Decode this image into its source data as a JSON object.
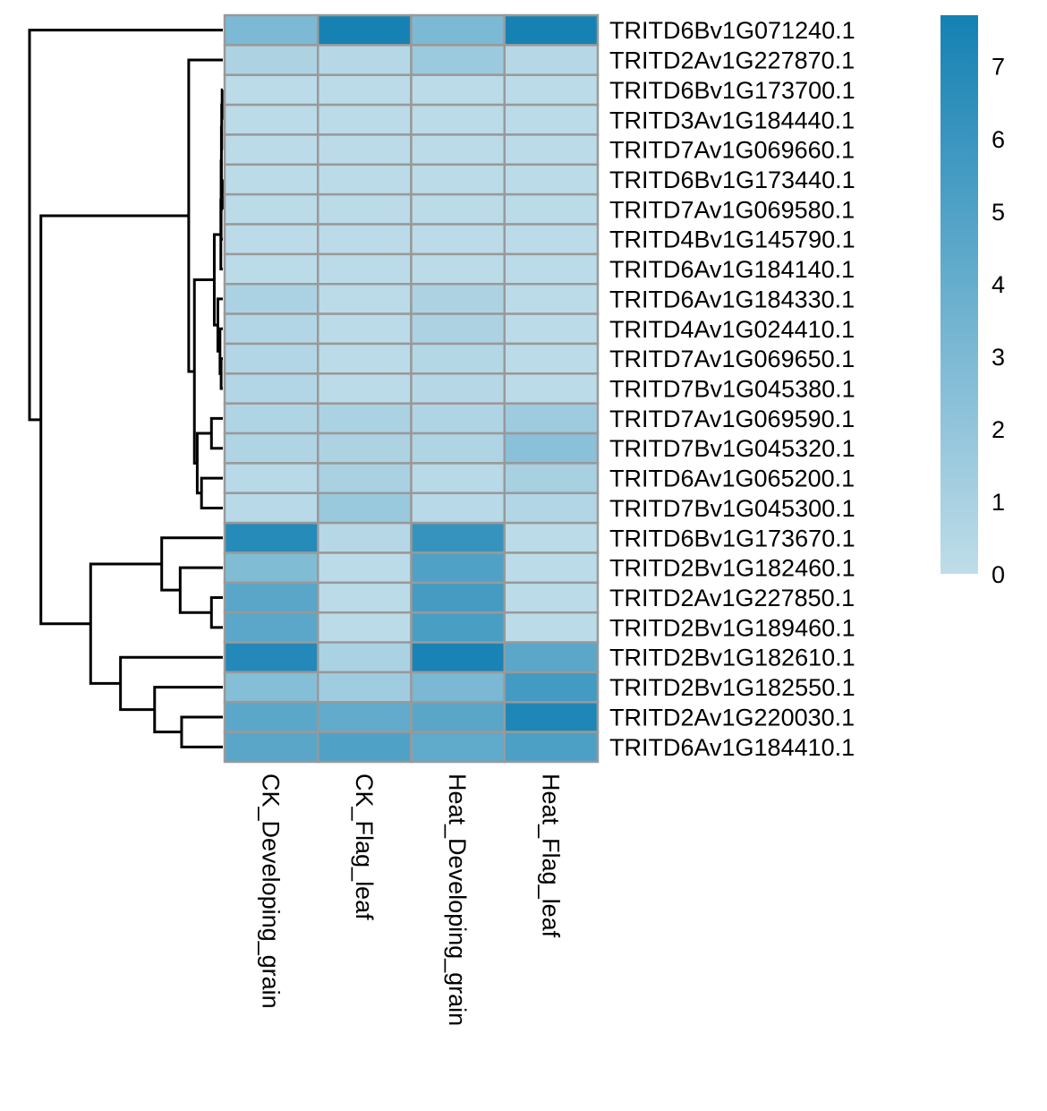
{
  "chart_data": {
    "type": "heatmap",
    "title": "",
    "columns": [
      "CK_Developing_grain",
      "CK_Flag_leaf",
      "Heat_Developing_grain",
      "Heat_Flag_leaf"
    ],
    "rows": [
      "TRITD6Bv1G071240.1",
      "TRITD2Av1G227870.1",
      "TRITD6Bv1G173700.1",
      "TRITD3Av1G184440.1",
      "TRITD7Av1G069660.1",
      "TRITD6Bv1G173440.1",
      "TRITD7Av1G069580.1",
      "TRITD4Bv1G145790.1",
      "TRITD6Av1G184140.1",
      "TRITD6Av1G184330.1",
      "TRITD4Av1G024410.1",
      "TRITD7Av1G069650.1",
      "TRITD7Bv1G045380.1",
      "TRITD7Av1G069590.1",
      "TRITD7Bv1G045320.1",
      "TRITD6Av1G065200.1",
      "TRITD7Bv1G045300.1",
      "TRITD6Bv1G173670.1",
      "TRITD2Bv1G182460.1",
      "TRITD2Av1G227850.1",
      "TRITD2Bv1G189460.1",
      "TRITD2Bv1G182610.1",
      "TRITD2Bv1G182550.1",
      "TRITD2Av1G220030.1",
      "TRITD6Av1G184410.1"
    ],
    "values": [
      [
        3.0,
        7.6,
        3.0,
        7.6
      ],
      [
        0.8,
        0.4,
        1.6,
        0.4
      ],
      [
        0.2,
        0.2,
        0.2,
        0.2
      ],
      [
        0.2,
        0.2,
        0.2,
        0.2
      ],
      [
        0.2,
        0.2,
        0.2,
        0.2
      ],
      [
        0.2,
        0.2,
        0.2,
        0.2
      ],
      [
        0.2,
        0.2,
        0.2,
        0.2
      ],
      [
        0.2,
        0.2,
        0.2,
        0.2
      ],
      [
        0.2,
        0.2,
        0.2,
        0.2
      ],
      [
        0.9,
        0.2,
        0.8,
        0.2
      ],
      [
        0.6,
        0.2,
        0.8,
        0.2
      ],
      [
        0.6,
        0.2,
        0.5,
        0.2
      ],
      [
        0.6,
        0.2,
        0.4,
        0.2
      ],
      [
        0.7,
        0.9,
        0.7,
        1.5
      ],
      [
        0.7,
        0.8,
        0.7,
        2.4
      ],
      [
        0.3,
        1.0,
        0.3,
        1.1
      ],
      [
        0.3,
        1.7,
        0.3,
        0.6
      ],
      [
        6.9,
        0.4,
        6.2,
        0.2
      ],
      [
        2.8,
        0.2,
        5.0,
        0.2
      ],
      [
        4.6,
        0.2,
        5.5,
        0.2
      ],
      [
        4.5,
        0.2,
        5.3,
        0.2
      ],
      [
        7.0,
        0.9,
        7.5,
        4.5
      ],
      [
        2.6,
        1.4,
        3.1,
        5.6
      ],
      [
        4.5,
        4.2,
        4.6,
        7.2
      ],
      [
        4.6,
        5.0,
        4.3,
        5.2
      ]
    ],
    "xlabel": "",
    "ylabel": "",
    "color_scale": {
      "min": 0,
      "max": 7.7,
      "low_color": "#bfdde9",
      "high_color": "#1481b3",
      "ticks": [
        0,
        1,
        2,
        3,
        4,
        5,
        6,
        7
      ],
      "legend_position": "right"
    },
    "cell_border_color": "#999999",
    "row_dendrogram": {
      "placement": "left",
      "merges": [
        {
          "a": "leaf:2",
          "b": "leaf:3",
          "h": 0.05
        },
        {
          "a": "m:0",
          "b": "leaf:4",
          "h": 0.08
        },
        {
          "a": "leaf:5",
          "b": "leaf:6",
          "h": 0.03
        },
        {
          "a": "m:1",
          "b": "m:2",
          "h": 0.1
        },
        {
          "a": "m:3",
          "b": "leaf:7",
          "h": 0.12
        },
        {
          "a": "m:4",
          "b": "leaf:8",
          "h": 0.14
        },
        {
          "a": "leaf:11",
          "b": "leaf:12",
          "h": 0.12
        },
        {
          "a": "leaf:10",
          "b": "m:6",
          "h": 0.2
        },
        {
          "a": "leaf:9",
          "b": "m:7",
          "h": 0.35
        },
        {
          "a": "m:5",
          "b": "m:8",
          "h": 0.6
        },
        {
          "a": "leaf:13",
          "b": "leaf:14",
          "h": 0.8
        },
        {
          "a": "leaf:15",
          "b": "leaf:16",
          "h": 1.5
        },
        {
          "a": "m:10",
          "b": "m:11",
          "h": 1.8
        },
        {
          "a": "m:9",
          "b": "m:12",
          "h": 2.0
        },
        {
          "a": "leaf:1",
          "b": "m:13",
          "h": 2.4
        },
        {
          "a": "leaf:19",
          "b": "leaf:20",
          "h": 0.8
        },
        {
          "a": "leaf:18",
          "b": "m:15",
          "h": 3.0
        },
        {
          "a": "leaf:17",
          "b": "m:16",
          "h": 4.3
        },
        {
          "a": "leaf:23",
          "b": "leaf:24",
          "h": 2.9
        },
        {
          "a": "leaf:22",
          "b": "m:18",
          "h": 4.8
        },
        {
          "a": "leaf:21",
          "b": "m:19",
          "h": 7.2
        },
        {
          "a": "m:17",
          "b": "m:20",
          "h": 9.3
        },
        {
          "a": "m:14",
          "b": "m:21",
          "h": 12.8
        },
        {
          "a": "leaf:0",
          "b": "m:22",
          "h": 13.6
        }
      ]
    }
  }
}
